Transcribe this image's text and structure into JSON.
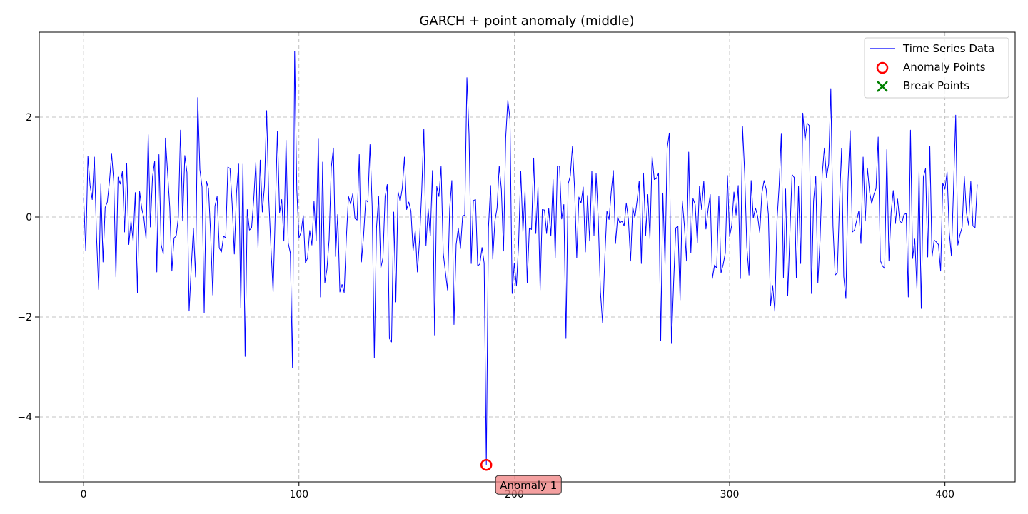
{
  "chart_data": {
    "type": "line",
    "title": "GARCH + point anomaly (middle)",
    "xlabel": "",
    "ylabel": "",
    "xlim": [
      -20.6,
      432.6
    ],
    "ylim": [
      -5.3,
      3.7
    ],
    "xticks": [
      0,
      100,
      200,
      300,
      400
    ],
    "xtick_labels": [
      "0",
      "100",
      "200",
      "300",
      "400"
    ],
    "yticks": [
      -4,
      -2,
      0,
      2
    ],
    "ytick_labels": [
      "−4",
      "−2",
      "0",
      "2"
    ],
    "grid": true,
    "legend_position": "top-right",
    "series": [
      {
        "name": "Time Series Data",
        "kind": "line",
        "color": "#0000ff",
        "x_start": 0,
        "values": [
          0.39,
          -0.68,
          1.22,
          0.63,
          0.35,
          1.2,
          -0.4,
          -1.45,
          0.66,
          -0.9,
          0.19,
          0.3,
          0.71,
          1.26,
          0.71,
          -1.2,
          0.8,
          0.66,
          0.91,
          -0.3,
          1.07,
          -0.55,
          -0.08,
          -0.48,
          0.49,
          -1.52,
          0.51,
          0.17,
          -0.02,
          -0.44,
          1.65,
          -0.2,
          0.8,
          1.12,
          -1.1,
          1.25,
          -0.55,
          -0.74,
          1.58,
          0.9,
          0.2,
          -1.08,
          -0.42,
          -0.38,
          0.0,
          1.74,
          -0.08,
          1.23,
          0.89,
          -1.88,
          -1.0,
          -0.22,
          -1.2,
          2.39,
          0.95,
          0.6,
          -1.91,
          0.72,
          0.57,
          -0.35,
          -1.56,
          0.22,
          0.41,
          -0.62,
          -0.7,
          -0.38,
          -0.42,
          1.0,
          0.97,
          0.25,
          -0.74,
          0.48,
          1.06,
          -1.82,
          1.06,
          -2.79,
          0.15,
          -0.26,
          -0.22,
          0.35,
          1.1,
          -0.62,
          1.14,
          0.1,
          0.62,
          2.13,
          0.35,
          -0.62,
          -1.5,
          0.08,
          1.72,
          0.09,
          0.35,
          -0.48,
          1.54,
          -0.52,
          -0.72,
          -3.01,
          3.32,
          0.55,
          -0.42,
          -0.3,
          0.03,
          -0.92,
          -0.82,
          -0.27,
          -0.56,
          0.31,
          -0.48,
          1.56,
          -1.6,
          1.1,
          -1.32,
          -1.04,
          -0.45,
          0.99,
          1.38,
          -0.79,
          0.05,
          -1.5,
          -1.35,
          -1.51,
          -0.42,
          0.41,
          0.26,
          0.47,
          -0.03,
          -0.06,
          1.25,
          -0.9,
          -0.38,
          0.34,
          0.3,
          1.45,
          0.21,
          -2.82,
          -0.22,
          0.41,
          -1.02,
          -0.82,
          0.41,
          0.65,
          -2.43,
          -2.5,
          0.1,
          -1.7,
          0.51,
          0.31,
          0.58,
          1.2,
          0.15,
          0.3,
          0.12,
          -0.68,
          -0.27,
          -1.1,
          -0.46,
          0.5,
          1.76,
          -0.57,
          0.16,
          -0.38,
          0.93,
          -2.36,
          0.61,
          0.41,
          1.01,
          -0.72,
          -1.1,
          -1.46,
          0.17,
          0.73,
          -2.15,
          -0.55,
          -0.22,
          -0.63,
          0.02,
          0.04,
          2.79,
          1.63,
          -0.93,
          0.33,
          0.35,
          -0.98,
          -0.94,
          -0.61,
          -0.92,
          -4.96,
          -0.22,
          0.63,
          -0.84,
          -0.08,
          0.18,
          1.02,
          0.55,
          -0.68,
          1.58,
          2.34,
          1.96,
          -1.53,
          -0.92,
          -1.38,
          -0.54,
          0.92,
          -0.3,
          0.52,
          -1.31,
          -0.22,
          -0.25,
          1.18,
          -0.33,
          0.6,
          -1.46,
          0.15,
          0.14,
          -0.33,
          0.17,
          -0.38,
          0.75,
          -0.82,
          1.02,
          1.02,
          -0.04,
          0.25,
          -2.43,
          0.66,
          0.82,
          1.41,
          0.56,
          -0.82,
          0.4,
          0.28,
          0.6,
          -0.7,
          0.43,
          -0.48,
          0.92,
          -0.37,
          0.87,
          -0.06,
          -1.5,
          -2.12,
          -0.84,
          0.12,
          -0.05,
          0.5,
          0.93,
          -0.53,
          0.0,
          -0.12,
          -0.08,
          -0.18,
          0.28,
          -0.05,
          -0.88,
          0.2,
          -0.02,
          0.32,
          0.72,
          -0.93,
          0.88,
          -0.37,
          0.45,
          -0.44,
          1.22,
          0.75,
          0.77,
          0.88,
          -2.47,
          0.48,
          -0.95,
          1.37,
          1.68,
          -2.53,
          -1.31,
          -0.22,
          -0.18,
          -1.66,
          0.33,
          -0.18,
          -0.88,
          1.3,
          -0.72,
          0.37,
          0.25,
          -0.52,
          0.62,
          0.15,
          0.72,
          -0.24,
          0.15,
          0.45,
          -1.23,
          -0.96,
          -1.02,
          0.42,
          -1.12,
          -0.95,
          -0.72,
          0.83,
          -0.39,
          -0.16,
          0.5,
          0.04,
          0.63,
          -1.23,
          1.81,
          0.87,
          -0.6,
          -1.16,
          0.73,
          -0.02,
          0.18,
          0.02,
          -0.31,
          0.48,
          0.73,
          0.55,
          0.05,
          -1.78,
          -1.37,
          -1.89,
          -0.08,
          0.62,
          1.66,
          -1.21,
          0.56,
          -1.57,
          -0.33,
          0.85,
          0.79,
          -1.22,
          0.62,
          -0.93,
          2.08,
          1.53,
          1.88,
          1.83,
          -1.53,
          0.32,
          0.82,
          -1.32,
          -0.46,
          0.85,
          1.38,
          0.79,
          1.06,
          2.57,
          -0.18,
          -1.16,
          -1.12,
          0.22,
          1.37,
          -1.19,
          -1.63,
          0.71,
          1.73,
          -0.3,
          -0.26,
          -0.07,
          0.12,
          -0.53,
          1.2,
          -0.08,
          0.98,
          0.5,
          0.27,
          0.45,
          0.57,
          1.6,
          -0.87,
          -0.98,
          -1.03,
          1.35,
          -0.88,
          0.09,
          0.53,
          -0.13,
          0.36,
          -0.08,
          -0.12,
          0.05,
          0.07,
          -1.6,
          1.74,
          -0.83,
          -0.44,
          -1.44,
          0.91,
          -1.83,
          0.8,
          0.97,
          -0.8,
          1.41,
          -0.8,
          -0.46,
          -0.5,
          -0.55,
          -1.08,
          0.68,
          0.56,
          0.9,
          -0.3,
          -0.78,
          0.58,
          2.04,
          -0.56,
          -0.35,
          -0.2,
          0.81,
          0.08,
          -0.16,
          0.71,
          -0.18,
          -0.21,
          0.65
        ]
      },
      {
        "name": "Anomaly Points",
        "kind": "scatter",
        "marker": "circle",
        "color": "#ff0000",
        "points": [
          [
            187,
            -4.96
          ]
        ]
      },
      {
        "name": "Break Points",
        "kind": "scatter",
        "marker": "x",
        "color": "#008000",
        "points": []
      }
    ],
    "annotations": [
      {
        "text": "Anomaly 1",
        "x": 187,
        "y": -4.96
      }
    ]
  }
}
